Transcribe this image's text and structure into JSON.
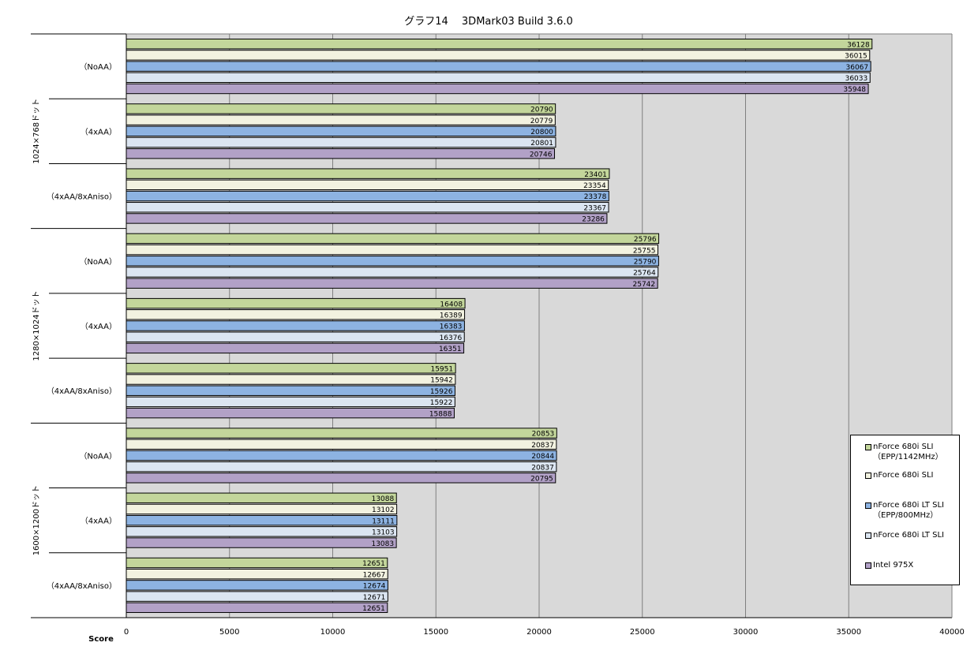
{
  "chart_data": {
    "type": "bar",
    "orientation": "horizontal",
    "title": "グラフ14　 3DMark03 Build 3.6.0",
    "xlabel": "Score",
    "xlim": [
      0,
      40000
    ],
    "xticks": [
      0,
      5000,
      10000,
      15000,
      20000,
      25000,
      30000,
      35000,
      40000
    ],
    "grid": true,
    "legend_position": "right-bottom",
    "groups": [
      {
        "label": "1024×768ドット",
        "categories": [
          "（NoAA）",
          "（4xAA）",
          "（4xAA/8xAniso）"
        ]
      },
      {
        "label": "1280×1024ドット",
        "categories": [
          "（NoAA）",
          "（4xAA）",
          "（4xAA/8xAniso）"
        ]
      },
      {
        "label": "1600×1200ドット",
        "categories": [
          "（NoAA）",
          "（4xAA）",
          "（4xAA/8xAniso）"
        ]
      }
    ],
    "series": [
      {
        "name": "nForce 680i SLI\n（EPP/1142MHz）",
        "color": "#c3d69b",
        "values": [
          36128,
          20790,
          23401,
          25796,
          16408,
          15951,
          20853,
          13088,
          12651
        ]
      },
      {
        "name": "nForce 680i SLI",
        "color": "#f2f2e0",
        "values": [
          36015,
          20779,
          23354,
          25755,
          16389,
          15942,
          20837,
          13102,
          12667
        ]
      },
      {
        "name": "nForce 680i LT SLI\n（EPP/800MHz）",
        "color": "#8db3e2",
        "values": [
          36067,
          20800,
          23378,
          25790,
          16383,
          15926,
          20844,
          13111,
          12674
        ]
      },
      {
        "name": "nForce 680i LT SLI",
        "color": "#dbe5f1",
        "values": [
          36033,
          20801,
          23367,
          25764,
          16376,
          15922,
          20837,
          13103,
          12671
        ]
      },
      {
        "name": "Intel 975X",
        "color": "#b2a1c7",
        "values": [
          35948,
          20746,
          23286,
          25742,
          16351,
          15888,
          20795,
          13083,
          12651
        ]
      }
    ]
  }
}
